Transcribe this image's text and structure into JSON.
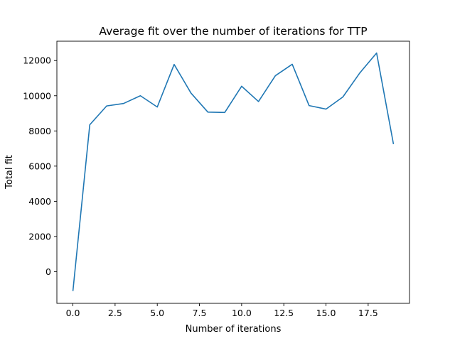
{
  "chart_data": {
    "type": "line",
    "title": "Average fit over the number of iterations for TTP",
    "xlabel": "Number of iterations",
    "ylabel": "Total fit",
    "xlim": [
      -0.95,
      19.95
    ],
    "ylim": [
      -1800,
      13100
    ],
    "xticks": [
      0,
      2.5,
      5,
      7.5,
      10,
      12.5,
      15,
      17.5
    ],
    "xtick_labels": [
      "0.0",
      "2.5",
      "5.0",
      "7.5",
      "10.0",
      "12.5",
      "15.0",
      "17.5"
    ],
    "yticks": [
      0,
      2000,
      4000,
      6000,
      8000,
      10000,
      12000
    ],
    "ytick_labels": [
      "0",
      "2000",
      "4000",
      "6000",
      "8000",
      "10000",
      "12000"
    ],
    "grid": false,
    "series": [
      {
        "color": "#1f77b4",
        "x": [
          0,
          1,
          2,
          3,
          4,
          5,
          6,
          7,
          8,
          9,
          10,
          11,
          12,
          13,
          14,
          15,
          16,
          17,
          18,
          19
        ],
        "y": [
          -1100,
          8350,
          9420,
          9560,
          10000,
          9360,
          11780,
          10150,
          9070,
          9050,
          10540,
          9670,
          11140,
          11790,
          9440,
          9240,
          9930,
          11290,
          12430,
          7250
        ]
      }
    ]
  }
}
